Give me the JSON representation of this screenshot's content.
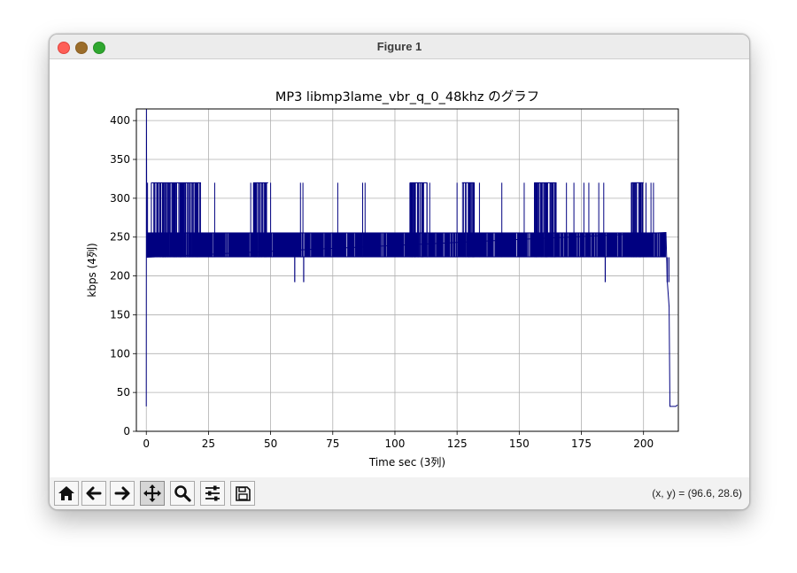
{
  "window": {
    "title": "Figure 1"
  },
  "toolbar": {
    "buttons": [
      "home-icon",
      "back-arrow-icon",
      "forward-arrow-icon",
      "pan-move-icon",
      "zoom-magnifier-icon",
      "configure-subplots-icon",
      "save-floppy-icon"
    ],
    "coords": "(x, y) = (96.6, 28.6)"
  },
  "chart_data": {
    "type": "line",
    "title": "MP3 libmp3lame_vbr_q_0_48khz のグラフ",
    "xlabel": "Time sec (3列)",
    "ylabel": "kbps (4列)",
    "xlim": [
      -4,
      214
    ],
    "ylim": [
      0,
      415
    ],
    "xticks": [
      "0",
      "25",
      "50",
      "75",
      "100",
      "125",
      "150",
      "175",
      "200"
    ],
    "yticks": [
      "0",
      "50",
      "100",
      "150",
      "200",
      "250",
      "300",
      "350",
      "400"
    ],
    "grid": true,
    "line_color": "#000080",
    "series": [
      {
        "bitrate_levels": [
          32,
          192,
          224,
          256,
          320
        ],
        "base_band": {
          "low": 224,
          "high": 256,
          "x_range": [
            0,
            209
          ]
        },
        "dense_320_regions": [
          [
            2,
            22
          ],
          [
            43,
            49
          ],
          [
            106,
            113
          ],
          [
            127,
            132
          ],
          [
            156,
            165
          ],
          [
            195,
            200
          ]
        ],
        "sparse_320_spikes": [
          0.5,
          27.5,
          42,
          50,
          62,
          63,
          77,
          87,
          88,
          108,
          114,
          125,
          134,
          143,
          152,
          169,
          172,
          176,
          178,
          182,
          184,
          201,
          203,
          204
        ],
        "dips_192": [
          59.7,
          63.3,
          184.6,
          209.5,
          210.2
        ],
        "points": [
          {
            "x": 0.0,
            "y": 32
          },
          {
            "x": 0.05,
            "y": 415
          },
          {
            "x": 0.2,
            "y": 224
          },
          {
            "x": 209.0,
            "y": 256
          },
          {
            "x": 209.6,
            "y": 192
          },
          {
            "x": 210.3,
            "y": 160
          },
          {
            "x": 210.6,
            "y": 32
          },
          {
            "x": 213.0,
            "y": 32
          },
          {
            "x": 213.6,
            "y": 34
          }
        ]
      }
    ]
  }
}
